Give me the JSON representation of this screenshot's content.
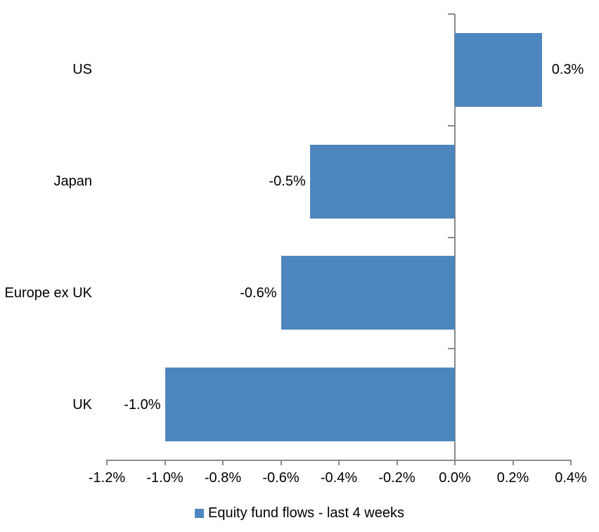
{
  "chart": {
    "background_color": "#ffffff",
    "bar_color": "#4d86be",
    "legend_marker_color": "#4d86be",
    "axis_color": "#8a8a8a",
    "text_color": "#000000"
  },
  "chart_data": {
    "type": "bar",
    "orientation": "horizontal",
    "title": "",
    "categories": [
      "US",
      "Japan",
      "Europe ex UK",
      "UK"
    ],
    "values": [
      0.3,
      -0.5,
      -0.6,
      -1.0
    ],
    "value_labels": [
      "0.3%",
      "-0.5%",
      "-0.6%",
      "-1.0%"
    ],
    "series_name": "Equity fund flows - last 4 weeks",
    "legend_position": "bottom",
    "grid": false,
    "x_axis": {
      "min": -1.2,
      "max": 0.4,
      "unit": "percent",
      "ticks": [
        -1.2,
        -1.0,
        -0.8,
        -0.6,
        -0.4,
        -0.2,
        0.0,
        0.2,
        0.4
      ],
      "tick_labels": [
        "-1.2%",
        "-1.0%",
        "-0.8%",
        "-0.6%",
        "-0.4%",
        "-0.2%",
        "0.0%",
        "0.2%",
        "0.4%"
      ]
    }
  }
}
